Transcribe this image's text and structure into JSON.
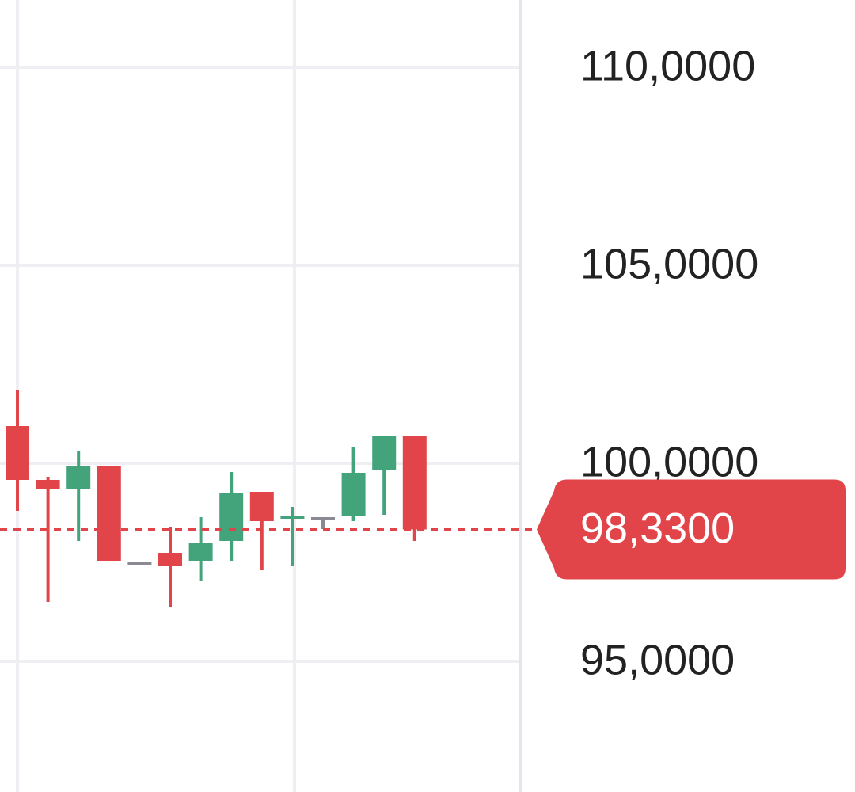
{
  "chart_data": {
    "type": "candlestick",
    "categories": [
      null,
      null,
      null,
      null,
      null,
      null,
      null,
      null,
      null,
      null,
      null,
      null,
      null,
      null
    ],
    "series": [
      {
        "open": [
          100.94,
          99.58,
          99.34,
          99.94,
          97.46,
          97.74,
          97.54,
          98.04,
          99.28,
          98.58,
          98.6,
          98.66,
          99.84,
          100.68
        ],
        "high": [
          101.86,
          99.66,
          100.3,
          99.94,
          97.46,
          98.38,
          98.64,
          99.78,
          99.28,
          98.9,
          98.6,
          100.4,
          100.68,
          100.68
        ],
        "low": [
          98.8,
          96.5,
          98.04,
          97.54,
          97.46,
          96.38,
          97.04,
          97.54,
          97.3,
          97.4,
          98.34,
          98.54,
          98.7,
          98.04
        ],
        "close": [
          99.58,
          99.34,
          99.94,
          97.54,
          97.46,
          97.4,
          98.0,
          99.26,
          98.54,
          98.64,
          98.6,
          99.76,
          100.68,
          98.33
        ]
      }
    ],
    "up_color": "#43a47c",
    "down_color": "#e1454a",
    "flat_color": "#8a8a92",
    "ylim": [
      91.7,
      111.7
    ],
    "yticks": [
      {
        "value": 95,
        "label": "95,0000"
      },
      {
        "value": 100,
        "label": "100,0000"
      },
      {
        "value": 105,
        "label": "105,0000"
      },
      {
        "value": 110,
        "label": "110,0000"
      }
    ],
    "grid": true,
    "current_price": {
      "value": 98.33,
      "label": "98,3300",
      "color": "#e1454a"
    }
  }
}
